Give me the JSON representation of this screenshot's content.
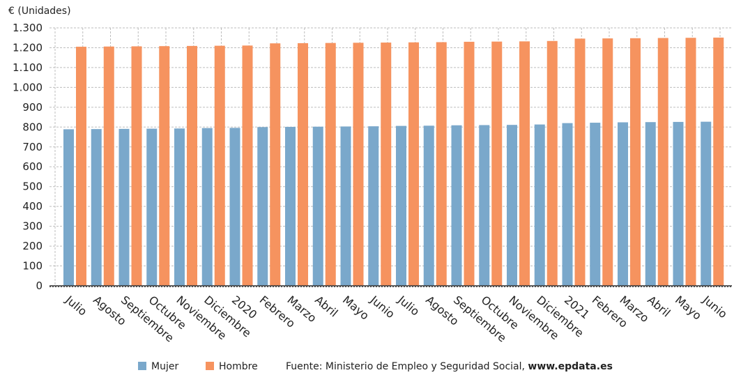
{
  "colors": {
    "mujer": "#7aa8cb",
    "hombre": "#f6935f",
    "grid": "#bdbdbd",
    "axis": "#333333"
  },
  "legend": {
    "mujer": "Mujer",
    "hombre": "Hombre"
  },
  "source": {
    "label": "Fuente: Ministerio de Empleo y Seguridad Social, ",
    "site": "www.epdata.es"
  },
  "chart_data": {
    "type": "bar",
    "ylabel": "€ (Unidades)",
    "ylim": [
      0,
      1300
    ],
    "yticks": [
      0,
      100,
      200,
      300,
      400,
      500,
      600,
      700,
      800,
      900,
      1000,
      1100,
      1200,
      1300
    ],
    "ytick_labels": [
      "0",
      "100",
      "200",
      "300",
      "400",
      "500",
      "600",
      "700",
      "800",
      "900",
      "1.000",
      "1.100",
      "1.200",
      "1.300"
    ],
    "grid": true,
    "legend_position": "bottom",
    "categories": [
      "Julio",
      "Agosto",
      "Septiembre",
      "Octubre",
      "Noviembre",
      "Diciembre",
      "2020",
      "Febrero",
      "Marzo",
      "Abril",
      "Mayo",
      "Junio",
      "Julio",
      "Agosto",
      "Septiembre",
      "Octubre",
      "Noviembre",
      "Diciembre",
      "2021",
      "Febrero",
      "Marzo",
      "Abril",
      "Mayo",
      "Junio"
    ],
    "series": [
      {
        "name": "Mujer",
        "values": [
          789,
          790,
          791,
          792,
          793,
          795,
          796,
          800,
          801,
          802,
          803,
          804,
          806,
          807,
          809,
          810,
          811,
          813,
          820,
          822,
          824,
          825,
          826,
          827
        ]
      },
      {
        "name": "Hombre",
        "values": [
          1205,
          1206,
          1207,
          1208,
          1209,
          1210,
          1211,
          1222,
          1223,
          1224,
          1225,
          1226,
          1227,
          1228,
          1230,
          1231,
          1232,
          1234,
          1246,
          1247,
          1248,
          1249,
          1250,
          1251
        ]
      }
    ]
  }
}
